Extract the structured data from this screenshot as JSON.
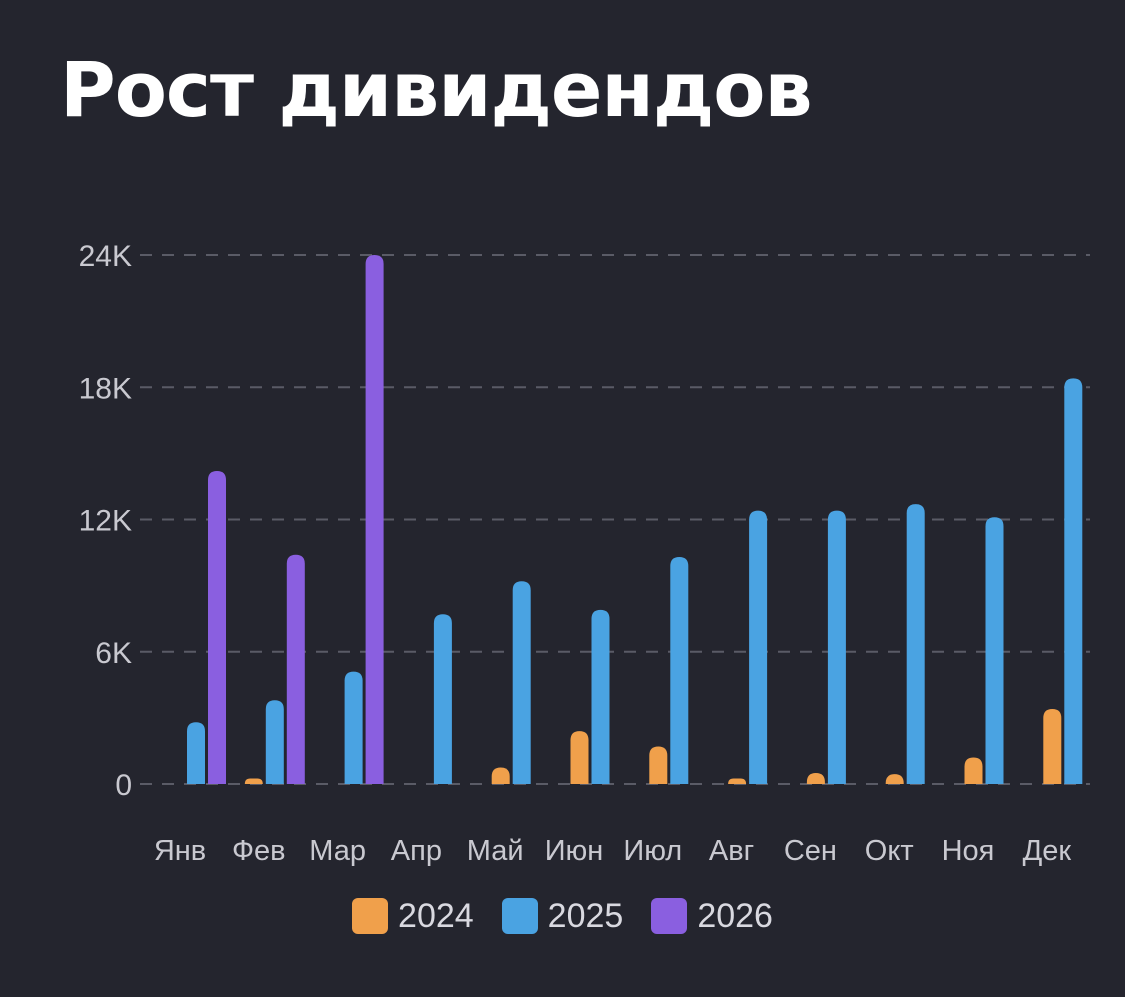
{
  "title": "Рост дивидендов",
  "colors": {
    "background": "#24252e",
    "grid": "#5a5b66",
    "tick_text": "#c9c9d0"
  },
  "chart_data": {
    "type": "bar",
    "categories": [
      "Янв",
      "Фев",
      "Мар",
      "Апр",
      "Май",
      "Июн",
      "Июл",
      "Авг",
      "Сен",
      "Окт",
      "Ноя",
      "Дек"
    ],
    "series": [
      {
        "name": "2024",
        "color": "#f0a04b",
        "values": [
          0,
          250,
          0,
          0,
          750,
          2400,
          1700,
          250,
          500,
          450,
          1200,
          3400
        ]
      },
      {
        "name": "2025",
        "color": "#4aa3e2",
        "values": [
          2800,
          3800,
          5100,
          7700,
          9200,
          7900,
          10300,
          12400,
          12400,
          12700,
          12100,
          18400
        ]
      },
      {
        "name": "2026",
        "color": "#8a5fe0",
        "values": [
          14200,
          10400,
          24000,
          null,
          null,
          null,
          null,
          null,
          null,
          null,
          null,
          null
        ]
      }
    ],
    "ylim": [
      0,
      24000
    ],
    "yticks": [
      0,
      6000,
      12000,
      18000,
      24000
    ],
    "ytick_labels": [
      "0",
      "6K",
      "12K",
      "18K",
      "24K"
    ],
    "grid": true,
    "legend_position": "bottom"
  }
}
